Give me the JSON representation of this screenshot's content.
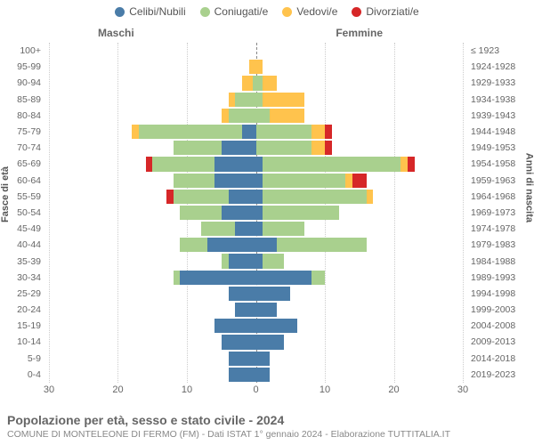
{
  "legend": {
    "items": [
      {
        "label": "Celibi/Nubili",
        "color": "#4a7ca8"
      },
      {
        "label": "Coniugati/e",
        "color": "#a9d08e"
      },
      {
        "label": "Vedovi/e",
        "color": "#ffc34d"
      },
      {
        "label": "Divorziati/e",
        "color": "#d62728"
      }
    ]
  },
  "headers": {
    "left": "Maschi",
    "right": "Femmine"
  },
  "axis": {
    "left_title": "Fasce di età",
    "right_title": "Anni di nascita",
    "x_max_each_side": 30,
    "x_ticks": [
      30,
      20,
      10,
      0,
      10,
      20,
      30
    ]
  },
  "colors": {
    "background": "#ffffff",
    "grid": "#cccccc",
    "centerline": "#888888",
    "text": "#555555"
  },
  "footer": {
    "title": "Popolazione per età, sesso e stato civile - 2024",
    "subtitle": "COMUNE DI MONTELEONE DI FERMO (FM) - Dati ISTAT 1° gennaio 2024 - Elaborazione TUTTITALIA.IT"
  },
  "rows": [
    {
      "age": "100+",
      "year": "≤ 1923",
      "m": [
        0,
        0,
        0,
        0
      ],
      "f": [
        0,
        0,
        0,
        0
      ]
    },
    {
      "age": "95-99",
      "year": "1924-1928",
      "m": [
        0,
        0,
        1,
        0
      ],
      "f": [
        0,
        0,
        1,
        0
      ]
    },
    {
      "age": "90-94",
      "year": "1929-1933",
      "m": [
        0,
        0.5,
        1.5,
        0
      ],
      "f": [
        0,
        1,
        2,
        0
      ]
    },
    {
      "age": "85-89",
      "year": "1934-1938",
      "m": [
        0,
        3,
        1,
        0
      ],
      "f": [
        0,
        1,
        6,
        0
      ]
    },
    {
      "age": "80-84",
      "year": "1939-1943",
      "m": [
        0,
        4,
        1,
        0
      ],
      "f": [
        0,
        2,
        5,
        0
      ]
    },
    {
      "age": "75-79",
      "year": "1944-1948",
      "m": [
        2,
        15,
        1,
        0
      ],
      "f": [
        0,
        8,
        2,
        1
      ]
    },
    {
      "age": "70-74",
      "year": "1949-1953",
      "m": [
        5,
        7,
        0,
        0
      ],
      "f": [
        0,
        8,
        2,
        1
      ]
    },
    {
      "age": "65-69",
      "year": "1954-1958",
      "m": [
        6,
        9,
        0,
        1
      ],
      "f": [
        1,
        20,
        1,
        1
      ]
    },
    {
      "age": "60-64",
      "year": "1959-1963",
      "m": [
        6,
        6,
        0,
        0
      ],
      "f": [
        1,
        12,
        1,
        2
      ]
    },
    {
      "age": "55-59",
      "year": "1964-1968",
      "m": [
        4,
        8,
        0,
        1
      ],
      "f": [
        1,
        15,
        1,
        0
      ]
    },
    {
      "age": "50-54",
      "year": "1969-1973",
      "m": [
        5,
        6,
        0,
        0
      ],
      "f": [
        1,
        11,
        0,
        0
      ]
    },
    {
      "age": "45-49",
      "year": "1974-1978",
      "m": [
        3,
        5,
        0,
        0
      ],
      "f": [
        1,
        6,
        0,
        0
      ]
    },
    {
      "age": "40-44",
      "year": "1979-1983",
      "m": [
        7,
        4,
        0,
        0
      ],
      "f": [
        3,
        13,
        0,
        0
      ]
    },
    {
      "age": "35-39",
      "year": "1984-1988",
      "m": [
        4,
        1,
        0,
        0
      ],
      "f": [
        1,
        3,
        0,
        0
      ]
    },
    {
      "age": "30-34",
      "year": "1989-1993",
      "m": [
        11,
        1,
        0,
        0
      ],
      "f": [
        8,
        2,
        0,
        0
      ]
    },
    {
      "age": "25-29",
      "year": "1994-1998",
      "m": [
        4,
        0,
        0,
        0
      ],
      "f": [
        5,
        0,
        0,
        0
      ]
    },
    {
      "age": "20-24",
      "year": "1999-2003",
      "m": [
        3,
        0,
        0,
        0
      ],
      "f": [
        3,
        0,
        0,
        0
      ]
    },
    {
      "age": "15-19",
      "year": "2004-2008",
      "m": [
        6,
        0,
        0,
        0
      ],
      "f": [
        6,
        0,
        0,
        0
      ]
    },
    {
      "age": "10-14",
      "year": "2009-2013",
      "m": [
        5,
        0,
        0,
        0
      ],
      "f": [
        4,
        0,
        0,
        0
      ]
    },
    {
      "age": "5-9",
      "year": "2014-2018",
      "m": [
        4,
        0,
        0,
        0
      ],
      "f": [
        2,
        0,
        0,
        0
      ]
    },
    {
      "age": "0-4",
      "year": "2019-2023",
      "m": [
        4,
        0,
        0,
        0
      ],
      "f": [
        2,
        0,
        0,
        0
      ]
    }
  ]
}
